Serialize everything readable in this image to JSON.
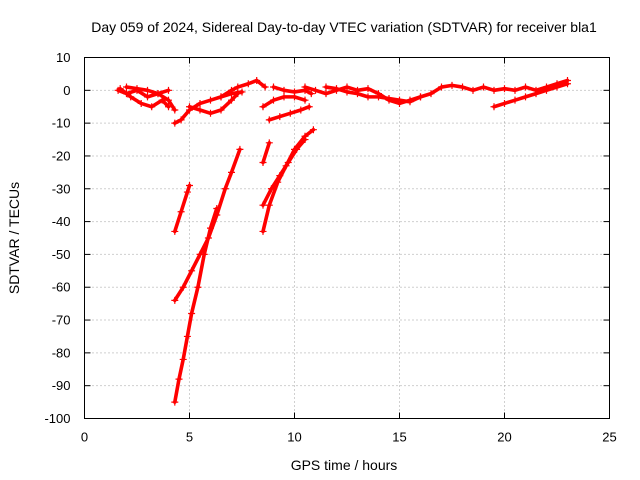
{
  "chart_data": {
    "type": "scatter",
    "title": "Day 059 of 2024, Sidereal Day-to-day VTEC variation (SDTVAR) for receiver bla1",
    "xlabel": "GPS time / hours",
    "ylabel": "SDTVAR / TECUs",
    "xlim": [
      0,
      25
    ],
    "ylim": [
      -100,
      10
    ],
    "xticks": [
      0,
      5,
      10,
      15,
      20,
      25
    ],
    "yticks": [
      -100,
      -90,
      -80,
      -70,
      -60,
      -50,
      -40,
      -30,
      -20,
      -10,
      0,
      10
    ],
    "grid": true,
    "legend": "none",
    "marker": "+",
    "color": "#ff0000",
    "series": [
      {
        "name": "track-1",
        "points": [
          [
            1.6,
            0
          ],
          [
            2.0,
            -1
          ],
          [
            2.5,
            0
          ],
          [
            3.0,
            -2
          ],
          [
            3.5,
            -1
          ],
          [
            4.0,
            0
          ]
        ]
      },
      {
        "name": "track-2",
        "points": [
          [
            1.7,
            0.5
          ],
          [
            2.2,
            -2
          ],
          [
            2.7,
            -4
          ],
          [
            3.2,
            -5
          ],
          [
            3.7,
            -3
          ],
          [
            4.0,
            -5
          ]
        ]
      },
      {
        "name": "track-3",
        "points": [
          [
            2.0,
            1
          ],
          [
            2.5,
            0.5
          ],
          [
            3.0,
            0
          ],
          [
            3.5,
            -1
          ],
          [
            4.0,
            -3
          ],
          [
            4.3,
            -6
          ]
        ]
      },
      {
        "name": "track-4",
        "points": [
          [
            4.3,
            -10
          ],
          [
            4.6,
            -9
          ],
          [
            5.0,
            -6
          ],
          [
            5.5,
            -4
          ],
          [
            6.0,
            -3
          ],
          [
            6.5,
            -2
          ],
          [
            7.0,
            -1
          ],
          [
            7.5,
            -0.5
          ]
        ]
      },
      {
        "name": "track-5",
        "points": [
          [
            5.0,
            -5
          ],
          [
            5.5,
            -6
          ],
          [
            6.0,
            -7
          ],
          [
            6.5,
            -6
          ],
          [
            7.0,
            -3
          ],
          [
            7.3,
            -1
          ]
        ]
      },
      {
        "name": "track-6",
        "points": [
          [
            6.5,
            -2
          ],
          [
            7.0,
            0
          ],
          [
            7.3,
            1
          ],
          [
            7.8,
            2
          ],
          [
            8.2,
            3
          ],
          [
            8.6,
            1
          ]
        ]
      },
      {
        "name": "track-7",
        "points": [
          [
            9.0,
            1
          ],
          [
            9.5,
            0
          ],
          [
            10.0,
            -0.5
          ],
          [
            10.5,
            0
          ],
          [
            10.8,
            -1
          ]
        ]
      },
      {
        "name": "track-8",
        "points": [
          [
            8.5,
            -5
          ],
          [
            9.0,
            -3
          ],
          [
            9.5,
            -2
          ],
          [
            10.0,
            -2
          ],
          [
            10.5,
            -3
          ]
        ]
      },
      {
        "name": "track-9",
        "points": [
          [
            8.8,
            -9
          ],
          [
            9.3,
            -8
          ],
          [
            9.8,
            -7
          ],
          [
            10.3,
            -6
          ],
          [
            10.7,
            -5
          ]
        ]
      },
      {
        "name": "track-10",
        "points": [
          [
            10.5,
            1
          ],
          [
            11.0,
            0
          ],
          [
            11.5,
            -1
          ],
          [
            12.0,
            0
          ],
          [
            12.5,
            1
          ],
          [
            13.0,
            0
          ],
          [
            13.5,
            0.5
          ],
          [
            14.0,
            -1
          ],
          [
            14.5,
            -3
          ],
          [
            15.0,
            -4
          ],
          [
            15.5,
            -3
          ],
          [
            16.0,
            -2
          ],
          [
            16.5,
            -1
          ],
          [
            17.0,
            1
          ],
          [
            17.5,
            1.5
          ],
          [
            18.0,
            1
          ],
          [
            18.5,
            0
          ],
          [
            19.0,
            1
          ],
          [
            19.5,
            0
          ],
          [
            20.0,
            0.5
          ],
          [
            20.5,
            0
          ],
          [
            21.0,
            1
          ],
          [
            21.5,
            0
          ],
          [
            22.0,
            1
          ],
          [
            22.5,
            2
          ],
          [
            23.0,
            3
          ]
        ]
      },
      {
        "name": "track-11",
        "points": [
          [
            11.5,
            1
          ],
          [
            12.0,
            0.5
          ],
          [
            12.5,
            -0.5
          ],
          [
            13.0,
            -1
          ],
          [
            13.5,
            -2
          ],
          [
            14.0,
            -2
          ],
          [
            14.5,
            -2.5
          ],
          [
            15.0,
            -3
          ],
          [
            15.5,
            -3.5
          ],
          [
            16.0,
            -2
          ]
        ]
      },
      {
        "name": "track-12",
        "points": [
          [
            19.5,
            -5
          ],
          [
            20.0,
            -4
          ],
          [
            20.5,
            -3
          ],
          [
            21.0,
            -2
          ],
          [
            21.5,
            -1
          ],
          [
            22.0,
            0
          ],
          [
            22.5,
            1
          ],
          [
            23.0,
            2
          ]
        ]
      },
      {
        "name": "track-13",
        "points": [
          [
            4.3,
            -43
          ],
          [
            4.6,
            -37
          ],
          [
            4.9,
            -31
          ],
          [
            5.0,
            -29
          ]
        ]
      },
      {
        "name": "track-14",
        "points": [
          [
            4.3,
            -64
          ],
          [
            4.7,
            -60
          ],
          [
            5.1,
            -55
          ],
          [
            5.5,
            -50
          ],
          [
            5.9,
            -45
          ],
          [
            6.3,
            -38
          ],
          [
            6.7,
            -30
          ],
          [
            7.0,
            -25
          ],
          [
            7.4,
            -18
          ]
        ]
      },
      {
        "name": "track-15",
        "points": [
          [
            4.3,
            -95
          ],
          [
            4.5,
            -88
          ],
          [
            4.7,
            -82
          ],
          [
            4.9,
            -75
          ],
          [
            5.1,
            -68
          ],
          [
            5.4,
            -60
          ],
          [
            5.7,
            -50
          ],
          [
            6.0,
            -42
          ],
          [
            6.3,
            -36
          ]
        ]
      },
      {
        "name": "track-16",
        "points": [
          [
            8.5,
            -22
          ],
          [
            8.8,
            -16
          ]
        ]
      },
      {
        "name": "track-17",
        "points": [
          [
            8.5,
            -43
          ],
          [
            8.8,
            -35
          ],
          [
            9.2,
            -28
          ],
          [
            9.6,
            -23
          ],
          [
            10.0,
            -18
          ],
          [
            10.5,
            -14
          ],
          [
            10.9,
            -12
          ]
        ]
      },
      {
        "name": "track-18",
        "points": [
          [
            8.5,
            -35
          ],
          [
            8.9,
            -30
          ],
          [
            9.3,
            -26
          ],
          [
            9.7,
            -22
          ],
          [
            10.1,
            -18
          ],
          [
            10.5,
            -15
          ]
        ]
      }
    ]
  }
}
